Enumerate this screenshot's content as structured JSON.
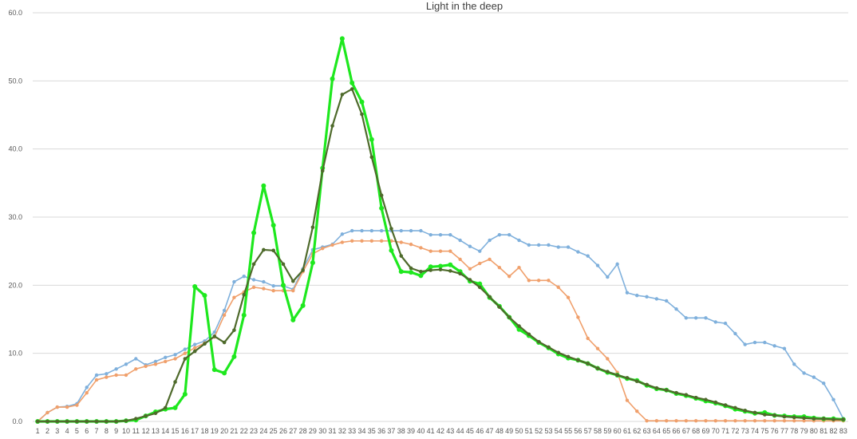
{
  "chart_data": {
    "type": "line",
    "title": "Light in the deep",
    "xlabel": "",
    "ylabel": "",
    "ylim": [
      0,
      60
    ],
    "yticks": [
      "0.0",
      "10.0",
      "20.0",
      "30.0",
      "40.0",
      "50.0",
      "60.0"
    ],
    "grid": true,
    "legend": "none",
    "x": [
      1,
      2,
      3,
      4,
      5,
      6,
      7,
      8,
      9,
      10,
      11,
      12,
      13,
      14,
      15,
      16,
      17,
      18,
      19,
      20,
      21,
      22,
      23,
      24,
      25,
      26,
      27,
      28,
      29,
      30,
      31,
      32,
      33,
      34,
      35,
      36,
      37,
      38,
      39,
      40,
      41,
      42,
      43,
      44,
      45,
      46,
      47,
      48,
      49,
      50,
      51,
      52,
      53,
      54,
      55,
      56,
      57,
      58,
      59,
      60,
      61,
      62,
      63,
      64,
      65,
      66,
      67,
      68,
      69,
      70,
      71,
      72,
      73,
      74,
      75,
      76,
      77,
      78,
      79,
      80,
      81,
      82,
      83
    ],
    "series": [
      {
        "color": "#7fb0dc",
        "line_width": 1.6,
        "marker_radius": 2.2,
        "values": [
          0.0,
          1.3,
          2.1,
          2.2,
          2.6,
          5.0,
          6.8,
          7.0,
          7.7,
          8.4,
          9.2,
          8.3,
          8.8,
          9.4,
          9.8,
          10.6,
          11.3,
          11.8,
          13.1,
          16.3,
          20.5,
          21.3,
          20.8,
          20.5,
          19.9,
          19.9,
          19.4,
          22.4,
          25.2,
          25.6,
          26.0,
          27.5,
          28.0,
          28.0,
          28.0,
          28.0,
          28.0,
          28.0,
          28.0,
          28.0,
          27.4,
          27.4,
          27.4,
          26.6,
          25.7,
          25.0,
          26.6,
          27.4,
          27.4,
          26.6,
          25.9,
          25.9,
          25.9,
          25.6,
          25.6,
          24.9,
          24.3,
          22.9,
          21.2,
          23.1,
          18.9,
          18.5,
          18.3,
          18.0,
          17.7,
          16.5,
          15.2,
          15.2,
          15.2,
          14.6,
          14.4,
          12.9,
          11.3,
          11.6,
          11.6,
          11.1,
          10.7,
          8.4,
          7.1,
          6.5,
          5.6,
          3.2,
          0.4
        ]
      },
      {
        "color": "#f0a06c",
        "line_width": 1.6,
        "marker_radius": 2.2,
        "values": [
          0.0,
          1.3,
          2.1,
          2.1,
          2.4,
          4.2,
          6.1,
          6.5,
          6.8,
          6.8,
          7.7,
          8.1,
          8.4,
          8.8,
          9.2,
          10.0,
          10.8,
          11.5,
          12.4,
          15.6,
          18.2,
          19.0,
          19.7,
          19.5,
          19.2,
          19.2,
          19.2,
          22.0,
          24.6,
          25.4,
          25.9,
          26.3,
          26.5,
          26.5,
          26.5,
          26.5,
          26.5,
          26.3,
          26.0,
          25.5,
          25.0,
          25.0,
          25.0,
          23.8,
          22.4,
          23.2,
          23.8,
          22.6,
          21.3,
          22.6,
          20.7,
          20.7,
          20.7,
          19.7,
          18.2,
          15.3,
          12.2,
          10.7,
          9.2,
          7.2,
          3.1,
          1.5,
          0.1,
          0.1,
          0.1,
          0.1,
          0.1,
          0.1,
          0.1,
          0.1,
          0.1,
          0.1,
          0.1,
          0.1,
          0.1,
          0.1,
          0.1,
          0.1,
          0.1,
          0.1,
          0.1,
          0.1,
          0.1
        ]
      },
      {
        "color": "#1ee81e",
        "line_width": 3.2,
        "marker_radius": 3.0,
        "values": [
          0.0,
          0.0,
          0.0,
          0.0,
          0.0,
          0.0,
          0.0,
          0.0,
          0.0,
          0.1,
          0.2,
          0.8,
          1.4,
          1.8,
          2.0,
          4.0,
          19.8,
          18.5,
          7.6,
          7.1,
          9.5,
          15.6,
          27.7,
          34.6,
          28.8,
          20.0,
          14.9,
          17.0,
          23.3,
          37.2,
          50.3,
          56.2,
          49.7,
          46.9,
          41.4,
          31.3,
          25.1,
          22.0,
          21.9,
          21.4,
          22.7,
          22.8,
          23.0,
          22.0,
          20.6,
          20.2,
          18.2,
          16.9,
          15.3,
          13.5,
          12.6,
          11.6,
          10.8,
          9.9,
          9.3,
          9.0,
          8.5,
          7.8,
          7.2,
          6.8,
          6.3,
          6.0,
          5.3,
          4.8,
          4.6,
          4.1,
          3.8,
          3.4,
          3.0,
          2.7,
          2.3,
          1.8,
          1.5,
          1.2,
          1.3,
          0.9,
          0.8,
          0.7,
          0.7,
          0.5,
          0.4,
          0.4,
          0.3
        ]
      },
      {
        "color": "#4e6a2b",
        "line_width": 2.2,
        "marker_radius": 2.3,
        "values": [
          0.0,
          0.0,
          0.0,
          0.0,
          0.0,
          0.0,
          0.0,
          0.0,
          0.0,
          0.1,
          0.4,
          0.8,
          1.2,
          2.0,
          5.8,
          9.2,
          10.3,
          11.4,
          12.5,
          11.6,
          13.4,
          18.6,
          23.1,
          25.2,
          25.1,
          23.1,
          20.6,
          22.2,
          28.5,
          36.8,
          43.4,
          48.0,
          48.8,
          45.1,
          38.8,
          33.2,
          28.3,
          24.3,
          22.5,
          22.0,
          22.2,
          22.3,
          22.1,
          21.7,
          20.8,
          19.7,
          18.3,
          16.8,
          15.3,
          14.0,
          12.8,
          11.7,
          10.9,
          10.1,
          9.5,
          9.0,
          8.5,
          7.8,
          7.3,
          6.8,
          6.4,
          5.9,
          5.4,
          4.9,
          4.6,
          4.2,
          3.9,
          3.5,
          3.2,
          2.8,
          2.4,
          2.0,
          1.6,
          1.3,
          1.0,
          0.9,
          0.7,
          0.6,
          0.5,
          0.4,
          0.4,
          0.3,
          0.3
        ]
      }
    ]
  }
}
